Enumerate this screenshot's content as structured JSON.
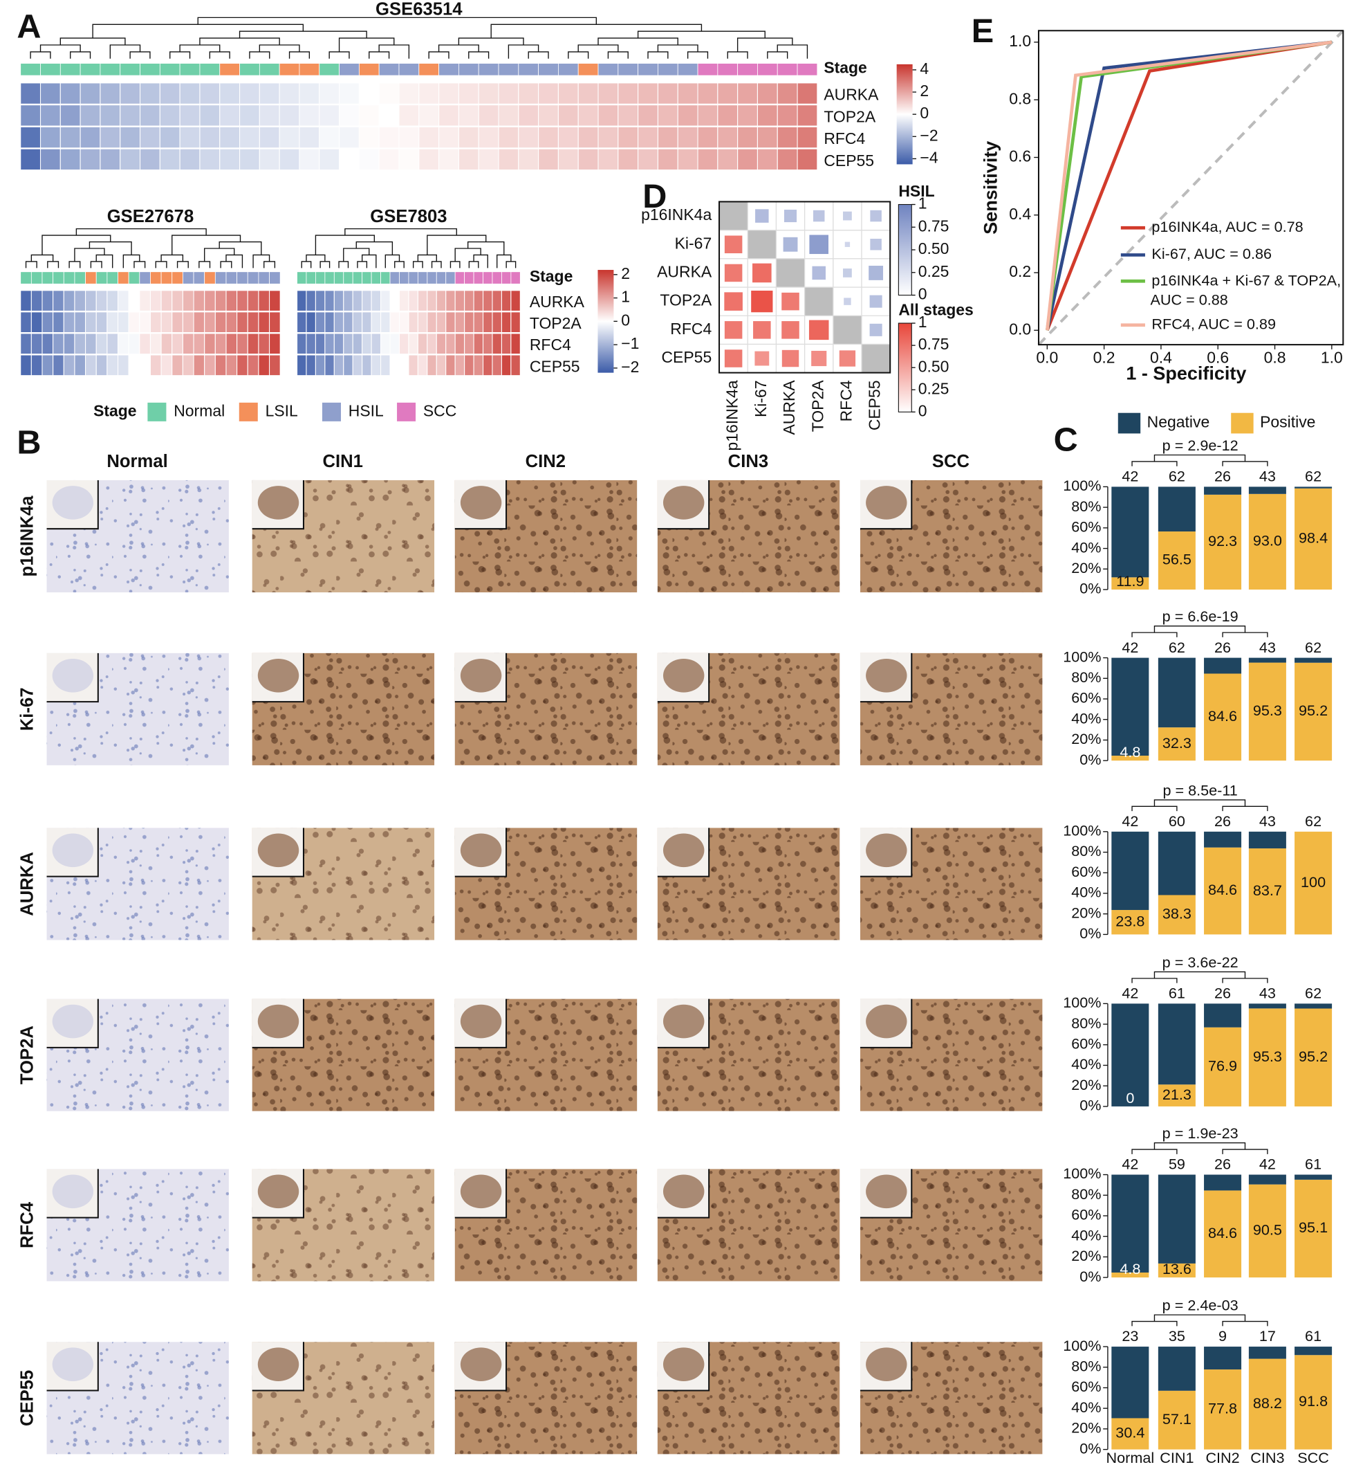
{
  "panel_labels": [
    "A",
    "B",
    "C",
    "D",
    "E"
  ],
  "stage_legend": {
    "title": "Stage",
    "items": [
      {
        "name": "Normal",
        "color": "#6fcfa8"
      },
      {
        "name": "LSIL",
        "color": "#f4905a"
      },
      {
        "name": "HSIL",
        "color": "#8f9fcc"
      },
      {
        "name": "SCC",
        "color": "#e07ac0"
      }
    ]
  },
  "ihc": {
    "columns": [
      "Normal",
      "CIN1",
      "CIN2",
      "CIN3",
      "SCC"
    ],
    "rows": [
      "p16INK4a",
      "Ki-67",
      "AURKA",
      "TOP2A",
      "RFC4",
      "CEP55"
    ]
  },
  "chart_data": [
    {
      "type": "heatmap",
      "title": "GSE63514",
      "stage_label": "Stage",
      "genes": [
        "AURKA",
        "TOP2A",
        "RFC4",
        "CEP55"
      ],
      "cmap": [
        "#3b5ba8",
        "#ffffff",
        "#c8352e"
      ],
      "clim": [
        -4.5,
        4.5
      ],
      "cticks": [
        4,
        2,
        0,
        {
          "value": -2,
          "label": "−2"
        },
        {
          "value": -4,
          "label": "−4"
        }
      ],
      "stages": [
        0,
        0,
        0,
        0,
        0,
        0,
        0,
        0,
        0,
        0,
        1,
        0,
        0,
        1,
        1,
        0,
        2,
        1,
        2,
        2,
        1,
        2,
        2,
        2,
        2,
        2,
        2,
        2,
        1,
        2,
        2,
        2,
        2,
        2,
        3,
        3,
        3,
        3,
        3,
        3
      ],
      "rows": [
        {
          "values": [
            -3.5,
            -2.8,
            -2.5,
            -2.2,
            -2,
            -1.8,
            -1.6,
            -1.5,
            -1.3,
            -1.2,
            -1,
            -0.9,
            -0.8,
            -0.6,
            -0.5,
            -0.3,
            -0.2,
            0,
            0.1,
            0.3,
            0.4,
            0.5,
            0.6,
            0.7,
            0.8,
            0.9,
            1,
            1.1,
            1.2,
            1.3,
            1.4,
            1.5,
            1.6,
            1.7,
            1.8,
            1.9,
            2,
            2.2,
            2.5,
            3
          ]
        },
        {
          "values": [
            -3,
            -2.5,
            -2.6,
            -2,
            -1.9,
            -1.7,
            -1.7,
            -1.4,
            -1.2,
            -1.3,
            -0.9,
            -1,
            -0.7,
            -0.7,
            -0.4,
            -0.4,
            -0.1,
            0.1,
            0,
            0.4,
            0.3,
            0.6,
            0.5,
            0.8,
            0.7,
            1,
            0.9,
            1.2,
            1.1,
            1.4,
            1.3,
            1.6,
            1.5,
            1.8,
            1.7,
            2,
            1.9,
            2.3,
            2.4,
            2.8
          ]
        },
        {
          "values": [
            -3.8,
            -2.4,
            -2.2,
            -2.3,
            -1.8,
            -1.9,
            -1.5,
            -1.6,
            -1.1,
            -1.2,
            -1.1,
            -0.8,
            -0.9,
            -0.5,
            -0.6,
            -0.2,
            -0.3,
            0.1,
            0.2,
            0.2,
            0.5,
            0.4,
            0.7,
            0.6,
            0.9,
            0.8,
            1.1,
            1,
            1.3,
            1.2,
            1.5,
            1.4,
            1.7,
            1.6,
            1.9,
            1.8,
            2.1,
            2.1,
            2.6,
            2.9
          ]
        },
        {
          "values": [
            -4,
            -2.9,
            -2.4,
            -2.1,
            -2.1,
            -1.6,
            -1.8,
            -1.3,
            -1.4,
            -1.1,
            -1,
            -1,
            -0.6,
            -0.8,
            -0.3,
            -0.5,
            0,
            -0.1,
            0.2,
            0.1,
            0.5,
            0.3,
            0.7,
            0.5,
            0.9,
            0.7,
            1.2,
            0.9,
            1.3,
            1.1,
            1.5,
            1.3,
            1.7,
            1.5,
            1.9,
            1.7,
            2.2,
            2,
            2.6,
            3.1
          ]
        }
      ]
    },
    {
      "type": "heatmap",
      "title": "GSE27678",
      "cmap": [
        "#3b5ba8",
        "#ffffff",
        "#c8352e"
      ],
      "clim": [
        -2.2,
        2.2
      ],
      "stages": [
        0,
        0,
        0,
        0,
        0,
        0,
        1,
        0,
        0,
        1,
        0,
        2,
        1,
        1,
        1,
        2,
        2,
        1,
        2,
        2,
        2,
        2,
        2,
        2
      ],
      "rows": [
        {
          "values": [
            -2,
            -1.8,
            -1.6,
            -1.5,
            -1.2,
            -1,
            -0.8,
            -0.6,
            -0.5,
            -0.2,
            0,
            0.2,
            0.3,
            0.5,
            0.6,
            0.8,
            1,
            1.1,
            1.2,
            1.4,
            1.5,
            1.6,
            1.8,
            2
          ]
        },
        {
          "values": [
            -1.9,
            -2,
            -1.5,
            -1.6,
            -1.1,
            -1.1,
            -0.7,
            -0.7,
            -0.3,
            -0.3,
            0.1,
            0.1,
            0.4,
            0.4,
            0.7,
            0.7,
            1.1,
            1,
            1.3,
            1.3,
            1.6,
            1.7,
            1.9,
            1.9
          ]
        },
        {
          "values": [
            -1.8,
            -1.7,
            -1.7,
            -1.3,
            -1.3,
            -0.9,
            -0.9,
            -0.5,
            -0.6,
            -0.1,
            -0.1,
            0.3,
            0.2,
            0.6,
            0.5,
            0.9,
            0.9,
            1.2,
            1.1,
            1.5,
            1.4,
            1.8,
            1.7,
            2
          ]
        },
        {
          "values": [
            -2,
            -1.9,
            -1.4,
            -1.7,
            -1,
            -1.2,
            -0.6,
            -0.8,
            -0.4,
            -0.4,
            0,
            0,
            0.5,
            0.3,
            0.8,
            0.6,
            1.2,
            0.9,
            1.4,
            1.2,
            1.7,
            1.5,
            2,
            1.8
          ]
        }
      ]
    },
    {
      "type": "heatmap",
      "title": "GSE7803",
      "stage_label": "Stage",
      "genes": [
        "AURKA",
        "TOP2A",
        "RFC4",
        "CEP55"
      ],
      "cmap": [
        "#3b5ba8",
        "#ffffff",
        "#c8352e"
      ],
      "clim": [
        -2.2,
        2.2
      ],
      "cticks": [
        2,
        1,
        0,
        {
          "value": -1,
          "label": "−1"
        },
        {
          "value": -2,
          "label": "−2"
        }
      ],
      "stages": [
        0,
        0,
        0,
        0,
        0,
        0,
        0,
        0,
        0,
        0,
        2,
        2,
        2,
        2,
        2,
        2,
        2,
        3,
        3,
        3,
        3,
        3,
        3,
        3
      ],
      "rows": [
        {
          "values": [
            -2,
            -1.8,
            -1.6,
            -1.5,
            -1.2,
            -1,
            -0.8,
            -0.6,
            -0.5,
            -0.2,
            0,
            0.2,
            0.3,
            0.5,
            0.6,
            0.8,
            1,
            1.1,
            1.2,
            1.4,
            1.5,
            1.6,
            1.8,
            2
          ]
        },
        {
          "values": [
            -1.9,
            -2,
            -1.5,
            -1.6,
            -1.1,
            -1.1,
            -0.7,
            -0.7,
            -0.3,
            -0.3,
            0.1,
            0.1,
            0.4,
            0.4,
            0.7,
            0.7,
            1.1,
            1,
            1.3,
            1.3,
            1.6,
            1.7,
            1.9,
            1.9
          ]
        },
        {
          "values": [
            -1.8,
            -1.7,
            -1.7,
            -1.3,
            -1.3,
            -0.9,
            -0.9,
            -0.5,
            -0.6,
            -0.1,
            -0.1,
            0.3,
            0.2,
            0.6,
            0.5,
            0.9,
            0.9,
            1.2,
            1.1,
            1.5,
            1.4,
            1.8,
            1.7,
            2
          ]
        },
        {
          "values": [
            -2,
            -1.9,
            -1.4,
            -1.7,
            -1,
            -1.2,
            -0.6,
            -0.8,
            -0.4,
            -0.4,
            0,
            0,
            0.5,
            0.3,
            0.8,
            0.6,
            1.2,
            0.9,
            1.4,
            1.2,
            1.7,
            1.5,
            2,
            1.8
          ]
        }
      ]
    },
    {
      "type": "correlation",
      "labels": [
        "p16INK4a",
        "Ki-67",
        "AURKA",
        "TOP2A",
        "RFC4",
        "CEP55"
      ],
      "matrix": [
        [
          null,
          0.35,
          0.3,
          0.25,
          0.15,
          0.25
        ],
        [
          0.6,
          null,
          0.4,
          0.7,
          0.05,
          0.25
        ],
        [
          0.6,
          0.7,
          null,
          0.35,
          0.15,
          0.4
        ],
        [
          0.65,
          0.9,
          0.6,
          null,
          0.1,
          0.3
        ],
        [
          0.6,
          0.6,
          0.6,
          0.75,
          null,
          0.3
        ],
        [
          0.6,
          0.4,
          0.55,
          0.45,
          0.5,
          null
        ]
      ],
      "upper": {
        "name": "HSIL",
        "color": "#6f83c0",
        "lim": [
          0,
          1
        ],
        "ticks": [
          1,
          0.75,
          {
            "value": 0.5,
            "label": "0.50"
          },
          0.25,
          0
        ]
      },
      "lower": {
        "name": "All stages",
        "color": "#e8463a",
        "lim": [
          0,
          1
        ],
        "ticks": [
          1,
          0.75,
          {
            "value": 0.5,
            "label": "0.50"
          },
          0.25,
          0
        ]
      }
    },
    {
      "type": "line",
      "x_label": "1 - Specificity",
      "y_label": "Sensitivity",
      "xlim": [
        -0.03,
        1.04
      ],
      "ylim": [
        -0.05,
        1.04
      ],
      "xticks": [
        {
          "value": 0,
          "label": "0.0"
        },
        0.2,
        0.4,
        0.6,
        0.8,
        {
          "value": 1,
          "label": "1.0"
        }
      ],
      "yticks": [
        {
          "value": 0,
          "label": "0.0"
        },
        0.2,
        0.4,
        0.6,
        0.8,
        {
          "value": 1,
          "label": "1.0"
        }
      ],
      "series": [
        {
          "name": "p16INK4a, AUC = 0.78",
          "color": "#d23b2b",
          "x": [
            0,
            0.36,
            1
          ],
          "values": [
            0,
            0.9,
            1
          ]
        },
        {
          "name": "Ki-67, AUC = 0.86",
          "color": "#2f4a8a",
          "x": [
            0,
            0.2,
            1
          ],
          "values": [
            0,
            0.91,
            1
          ]
        },
        {
          "name": "p16INK4a + Ki-67 & TOP2A, AUC = 0.88",
          "color": "#6cbf45",
          "x": [
            0,
            0.12,
            1
          ],
          "values": [
            0,
            0.88,
            1
          ]
        },
        {
          "name": "RFC4, AUC = 0.89",
          "color": "#f5b4a0",
          "x": [
            0,
            0.1,
            1
          ],
          "values": [
            0,
            0.885,
            1
          ]
        }
      ]
    },
    {
      "type": "stacked-bar",
      "categories": [
        "Normal",
        "CIN1",
        "CIN2",
        "CIN3",
        "SCC"
      ],
      "legend": [
        {
          "name": "Negative",
          "color": "#1f4560"
        },
        {
          "name": "Positive",
          "color": "#f2b843"
        }
      ],
      "ylim": [
        0,
        100
      ],
      "yticks": [
        {
          "value": 0,
          "label": "0%"
        },
        {
          "value": 20,
          "label": "20%"
        },
        {
          "value": 40,
          "label": "40%"
        },
        {
          "value": 60,
          "label": "60%"
        },
        {
          "value": 80,
          "label": "80%"
        },
        {
          "value": 100,
          "label": "100%"
        }
      ],
      "panels": [
        {
          "title": "p = 2.9e-12",
          "counts": [
            42,
            62,
            26,
            43,
            62
          ],
          "series": [
            {
              "values": [
                88.1,
                43.5,
                7.7,
                7.0,
                1.6
              ]
            },
            {
              "values": [
                11.9,
                56.5,
                92.3,
                93.0,
                98.4
              ],
              "value_labels": [
                "11.9",
                "56.5",
                "92.3",
                "93.0",
                "98.4"
              ]
            }
          ]
        },
        {
          "title": "p = 6.6e-19",
          "counts": [
            42,
            62,
            26,
            43,
            62
          ],
          "series": [
            {
              "values": [
                95.2,
                67.7,
                15.4,
                4.7,
                4.8
              ]
            },
            {
              "values": [
                4.8,
                32.3,
                84.6,
                95.3,
                95.2
              ],
              "value_labels": [
                "4.8",
                "32.3",
                "84.6",
                "95.3",
                "95.2"
              ]
            }
          ]
        },
        {
          "title": "p = 8.5e-11",
          "counts": [
            42,
            60,
            26,
            43,
            62
          ],
          "series": [
            {
              "values": [
                76.2,
                61.7,
                15.4,
                16.3,
                0
              ]
            },
            {
              "values": [
                23.8,
                38.3,
                84.6,
                83.7,
                100
              ],
              "value_labels": [
                "23.8",
                "38.3",
                "84.6",
                "83.7",
                "100"
              ]
            }
          ]
        },
        {
          "title": "p = 3.6e-22",
          "counts": [
            42,
            61,
            26,
            43,
            62
          ],
          "series": [
            {
              "values": [
                100,
                78.7,
                23.1,
                4.7,
                4.8
              ]
            },
            {
              "values": [
                0,
                21.3,
                76.9,
                95.3,
                95.2
              ],
              "value_labels": [
                "0",
                "21.3",
                "76.9",
                "95.3",
                "95.2"
              ]
            }
          ]
        },
        {
          "title": "p = 1.9e-23",
          "counts": [
            42,
            59,
            26,
            42,
            61
          ],
          "series": [
            {
              "values": [
                95.2,
                86.4,
                15.4,
                9.5,
                4.9
              ]
            },
            {
              "values": [
                4.8,
                13.6,
                84.6,
                90.5,
                95.1
              ],
              "value_labels": [
                "4.8",
                "13.6",
                "84.6",
                "90.5",
                "95.1"
              ]
            }
          ]
        },
        {
          "title": "p = 2.4e-03",
          "counts": [
            23,
            35,
            9,
            17,
            61
          ],
          "series": [
            {
              "values": [
                69.6,
                42.9,
                22.2,
                11.8,
                8.2
              ]
            },
            {
              "values": [
                30.4,
                57.1,
                77.8,
                88.2,
                91.8
              ],
              "value_labels": [
                "30.4",
                "57.1",
                "77.8",
                "88.2",
                "91.8"
              ]
            }
          ]
        }
      ]
    }
  ]
}
